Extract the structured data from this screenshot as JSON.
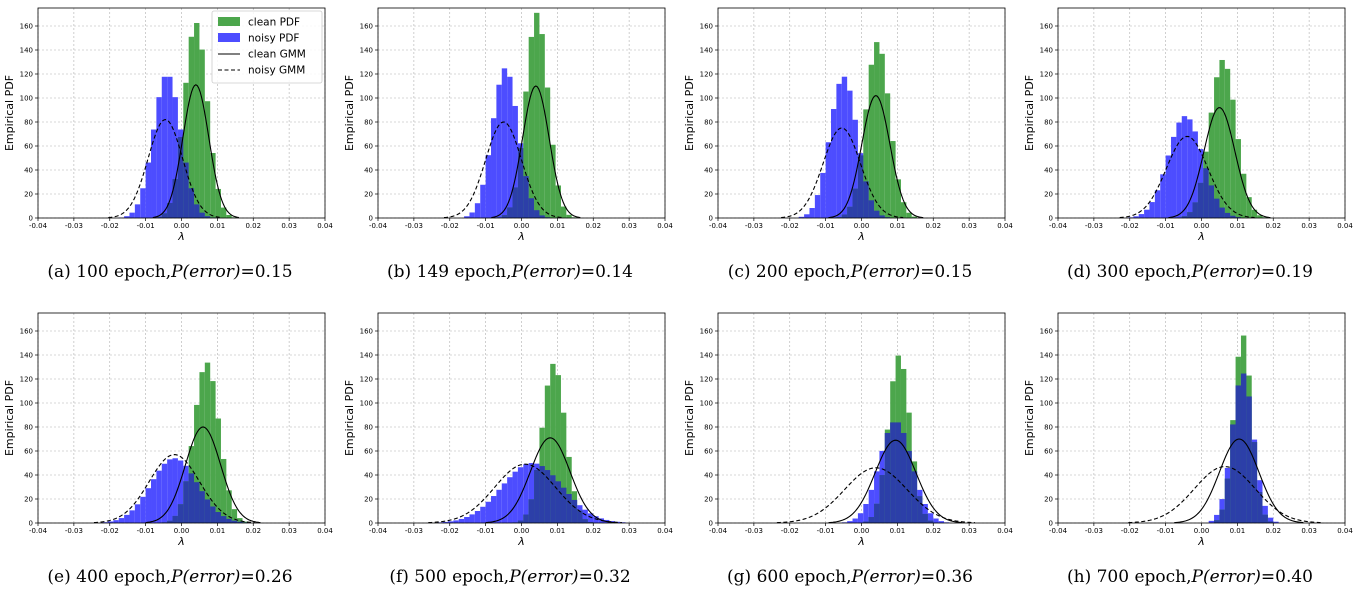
{
  "colors": {
    "clean": "#4ca64c",
    "noisy": "#4d4dff",
    "overlap": "#2c3fa8"
  },
  "legend": [
    {
      "label": "clean PDF",
      "kind": "patch",
      "color": "#4ca64c"
    },
    {
      "label": "noisy PDF",
      "kind": "patch",
      "color": "#4d4dff"
    },
    {
      "label": "clean GMM",
      "kind": "solid-line"
    },
    {
      "label": "noisy GMM",
      "kind": "dashed-line"
    }
  ],
  "chart_data": [
    {
      "type": "bar",
      "id": "a",
      "caption_prefix": "(a) 100 epoch,",
      "caption_math": "P(error)",
      "caption_value": "=0.15",
      "xlabel": "λ",
      "ylabel": "Empirical PDF",
      "xlim": [
        -0.04,
        0.04
      ],
      "ylim": [
        0,
        175
      ],
      "xticks": [
        -0.04,
        -0.03,
        -0.02,
        -0.01,
        0.0,
        0.01,
        0.02,
        0.03,
        0.04
      ],
      "xticklabels": [
        "-0.04",
        "-0.03",
        "-0.02",
        "-0.01",
        "0.00",
        "0.01",
        "0.02",
        "0.03",
        "0.04"
      ],
      "yticks": [
        0,
        20,
        40,
        60,
        80,
        100,
        120,
        140,
        160
      ],
      "grid": true,
      "legend": "top-right",
      "clean_gmm": {
        "mean": 0.004,
        "sd": 0.0036,
        "peak": 111
      },
      "noisy_gmm": {
        "mean": -0.0045,
        "sd": 0.0048,
        "peak": 82
      },
      "clean_hist": {
        "mean": 0.004,
        "sd": 0.0032,
        "peak": 163
      },
      "noisy_hist": {
        "mean": -0.004,
        "sd": 0.0038,
        "peak": 120
      }
    },
    {
      "type": "bar",
      "id": "b",
      "caption_prefix": "(b) 149 epoch,",
      "caption_math": "P(error)",
      "caption_value": "=0.14",
      "xlabel": "λ",
      "ylabel": "Empirical PDF",
      "xlim": [
        -0.04,
        0.04
      ],
      "ylim": [
        0,
        175
      ],
      "xticks": [
        -0.04,
        -0.03,
        -0.02,
        -0.01,
        0.0,
        0.01,
        0.02,
        0.03,
        0.04
      ],
      "xticklabels": [
        "-0.04",
        "-0.03",
        "-0.02",
        "-0.01",
        "0.00",
        "0.01",
        "0.02",
        "0.03",
        "0.04"
      ],
      "yticks": [
        0,
        20,
        40,
        60,
        80,
        100,
        120,
        140,
        160
      ],
      "grid": true,
      "clean_gmm": {
        "mean": 0.004,
        "sd": 0.0037,
        "peak": 110
      },
      "noisy_gmm": {
        "mean": -0.005,
        "sd": 0.005,
        "peak": 80
      },
      "clean_hist": {
        "mean": 0.0043,
        "sd": 0.0031,
        "peak": 171
      },
      "noisy_hist": {
        "mean": -0.0045,
        "sd": 0.0036,
        "peak": 125
      }
    },
    {
      "type": "bar",
      "id": "c",
      "caption_prefix": "(c) 200 epoch,",
      "caption_math": "P(error)",
      "caption_value": "=0.15",
      "xlabel": "λ",
      "ylabel": "Empirical PDF",
      "xlim": [
        -0.04,
        0.04
      ],
      "ylim": [
        0,
        175
      ],
      "xticks": [
        -0.04,
        -0.03,
        -0.02,
        -0.01,
        0.0,
        0.01,
        0.02,
        0.03,
        0.04
      ],
      "xticklabels": [
        "-0.04",
        "-0.03",
        "-0.02",
        "-0.01",
        "0.00",
        "0.01",
        "0.02",
        "0.03",
        "0.04"
      ],
      "yticks": [
        0,
        20,
        40,
        60,
        80,
        100,
        120,
        140,
        160
      ],
      "grid": true,
      "clean_gmm": {
        "mean": 0.004,
        "sd": 0.0039,
        "peak": 102
      },
      "noisy_gmm": {
        "mean": -0.0055,
        "sd": 0.0052,
        "peak": 75
      },
      "clean_hist": {
        "mean": 0.0045,
        "sd": 0.0033,
        "peak": 147
      },
      "noisy_hist": {
        "mean": -0.005,
        "sd": 0.0038,
        "peak": 118
      }
    },
    {
      "type": "bar",
      "id": "d",
      "caption_prefix": "(d) 300 epoch,",
      "caption_math": "P(error)",
      "caption_value": "=0.19",
      "xlabel": "λ",
      "ylabel": "Empirical PDF",
      "xlim": [
        -0.04,
        0.04
      ],
      "ylim": [
        0,
        175
      ],
      "xticks": [
        -0.04,
        -0.03,
        -0.02,
        -0.01,
        0.0,
        0.01,
        0.02,
        0.03,
        0.04
      ],
      "xticklabels": [
        "-0.04",
        "-0.03",
        "-0.02",
        "-0.01",
        "0.00",
        "0.01",
        "0.02",
        "0.03",
        "0.04"
      ],
      "yticks": [
        0,
        20,
        40,
        60,
        80,
        100,
        120,
        140,
        160
      ],
      "grid": true,
      "clean_gmm": {
        "mean": 0.005,
        "sd": 0.0043,
        "peak": 92
      },
      "noisy_gmm": {
        "mean": -0.004,
        "sd": 0.0058,
        "peak": 68
      },
      "clean_hist": {
        "mean": 0.006,
        "sd": 0.0036,
        "peak": 132
      },
      "noisy_hist": {
        "mean": -0.0045,
        "sd": 0.0048,
        "peak": 85
      }
    },
    {
      "type": "bar",
      "id": "e",
      "caption_prefix": "(e) 400 epoch,",
      "caption_math": "P(error)",
      "caption_value": "=0.26",
      "xlabel": "λ",
      "ylabel": "Empirical PDF",
      "xlim": [
        -0.04,
        0.04
      ],
      "ylim": [
        0,
        175
      ],
      "xticks": [
        -0.04,
        -0.03,
        -0.02,
        -0.01,
        0.0,
        0.01,
        0.02,
        0.03,
        0.04
      ],
      "xticklabels": [
        "-0.04",
        "-0.03",
        "-0.02",
        "-0.01",
        "0.00",
        "0.01",
        "0.02",
        "0.03",
        "0.04"
      ],
      "yticks": [
        0,
        20,
        40,
        60,
        80,
        100,
        120,
        140,
        160
      ],
      "grid": true,
      "clean_gmm": {
        "mean": 0.006,
        "sd": 0.0049,
        "peak": 80
      },
      "noisy_gmm": {
        "mean": -0.002,
        "sd": 0.007,
        "peak": 57
      },
      "clean_hist": {
        "mean": 0.007,
        "sd": 0.0035,
        "peak": 134
      },
      "noisy_hist": {
        "mean": -0.002,
        "sd": 0.0065,
        "peak": 54
      }
    },
    {
      "type": "bar",
      "id": "f",
      "caption_prefix": "(f) 500 epoch,",
      "caption_math": "P(error)",
      "caption_value": "=0.32",
      "xlabel": "λ",
      "ylabel": "Empirical PDF",
      "xlim": [
        -0.04,
        0.04
      ],
      "ylim": [
        0,
        175
      ],
      "xticks": [
        -0.04,
        -0.03,
        -0.02,
        -0.01,
        0.0,
        0.01,
        0.02,
        0.03,
        0.04
      ],
      "xticklabels": [
        "-0.04",
        "-0.03",
        "-0.02",
        "-0.01",
        "0.00",
        "0.01",
        "0.02",
        "0.03",
        "0.04"
      ],
      "yticks": [
        0,
        20,
        40,
        60,
        80,
        100,
        120,
        140,
        160
      ],
      "grid": true,
      "clean_gmm": {
        "mean": 0.008,
        "sd": 0.0055,
        "peak": 71
      },
      "noisy_gmm": {
        "mean": 0.001,
        "sd": 0.0085,
        "peak": 49
      },
      "clean_hist": {
        "mean": 0.009,
        "sd": 0.0032,
        "peak": 133
      },
      "noisy_hist": {
        "mean": 0.003,
        "sd": 0.0085,
        "peak": 50
      }
    },
    {
      "type": "bar",
      "id": "g",
      "caption_prefix": "(g) 600 epoch,",
      "caption_math": "P(error)",
      "caption_value": "=0.36",
      "xlabel": "λ",
      "ylabel": "Empirical PDF",
      "xlim": [
        -0.04,
        0.04
      ],
      "ylim": [
        0,
        175
      ],
      "xticks": [
        -0.04,
        -0.03,
        -0.02,
        -0.01,
        0.0,
        0.01,
        0.02,
        0.03,
        0.04
      ],
      "xticklabels": [
        "-0.04",
        "-0.03",
        "-0.02",
        "-0.01",
        "0.00",
        "0.01",
        "0.02",
        "0.03",
        "0.04"
      ],
      "yticks": [
        0,
        20,
        40,
        60,
        80,
        100,
        120,
        140,
        160
      ],
      "grid": true,
      "clean_gmm": {
        "mean": 0.0095,
        "sd": 0.0057,
        "peak": 69
      },
      "noisy_gmm": {
        "mean": 0.004,
        "sd": 0.0087,
        "peak": 46
      },
      "clean_hist": {
        "mean": 0.0105,
        "sd": 0.003,
        "peak": 140
      },
      "noisy_hist": {
        "mean": 0.0095,
        "sd": 0.0045,
        "peak": 85
      }
    },
    {
      "type": "bar",
      "id": "h",
      "caption_prefix": "(h) 700 epoch,",
      "caption_math": "P(error)",
      "caption_value": "=0.40",
      "xlabel": "λ",
      "ylabel": "Empirical PDF",
      "xlim": [
        -0.04,
        0.04
      ],
      "ylim": [
        0,
        175
      ],
      "xticks": [
        -0.04,
        -0.03,
        -0.02,
        -0.01,
        0.0,
        0.01,
        0.02,
        0.03,
        0.04
      ],
      "xticklabels": [
        "-0.04",
        "-0.03",
        "-0.02",
        "-0.01",
        "0.00",
        "0.01",
        "0.02",
        "0.03",
        "0.04"
      ],
      "yticks": [
        0,
        20,
        40,
        60,
        80,
        100,
        120,
        140,
        160
      ],
      "grid": true,
      "clean_gmm": {
        "mean": 0.0105,
        "sd": 0.0055,
        "peak": 70
      },
      "noisy_gmm": {
        "mean": 0.0065,
        "sd": 0.0085,
        "peak": 47
      },
      "clean_hist": {
        "mean": 0.0115,
        "sd": 0.0025,
        "peak": 157
      },
      "noisy_hist": {
        "mean": 0.0115,
        "sd": 0.003,
        "peak": 125
      }
    }
  ]
}
